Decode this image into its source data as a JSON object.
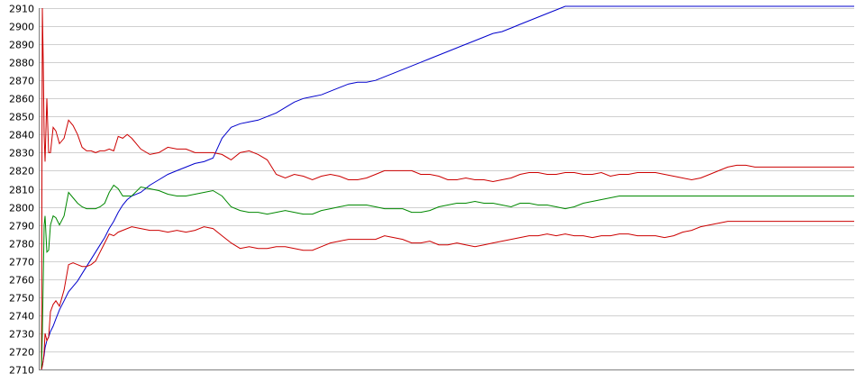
{
  "chart_data": {
    "type": "line",
    "title": "",
    "xlabel": "",
    "ylabel": "",
    "ylim": [
      2710,
      2910
    ],
    "yticks": [
      2710,
      2720,
      2730,
      2740,
      2750,
      2760,
      2770,
      2780,
      2790,
      2800,
      2810,
      2820,
      2830,
      2840,
      2850,
      2860,
      2870,
      2880,
      2890,
      2900,
      2910
    ],
    "grid": true,
    "legend": "none",
    "x": [
      0,
      1,
      2,
      3,
      4,
      6,
      8,
      10,
      13,
      16,
      20,
      25,
      30,
      35,
      40,
      45,
      50,
      55,
      60,
      65,
      70,
      75,
      80,
      85,
      90,
      95,
      100,
      110,
      120,
      130,
      140,
      150,
      160,
      170,
      180,
      190,
      200,
      210,
      220,
      230,
      240,
      250,
      260,
      270,
      280,
      290,
      300,
      310,
      320,
      330,
      340,
      350,
      360,
      370,
      380,
      390,
      400,
      410,
      420,
      430,
      440,
      450,
      460,
      470,
      480,
      490,
      500,
      510,
      520,
      530,
      540,
      550,
      560,
      570,
      580,
      590,
      600,
      610,
      620,
      630,
      640,
      650,
      660,
      670,
      680,
      690,
      700,
      710,
      720,
      730,
      740,
      750,
      760,
      770,
      780,
      790,
      800,
      810,
      820,
      830,
      840,
      850,
      860,
      870,
      880,
      890,
      900
    ],
    "series": [
      {
        "color": "#0000cc",
        "values": [
          2710,
          2712,
          2715,
          2718,
          2722,
          2726,
          2728,
          2731,
          2734,
          2738,
          2743,
          2748,
          2753,
          2756,
          2759,
          2763,
          2767,
          2771,
          2775,
          2779,
          2783,
          2788,
          2792,
          2797,
          2801,
          2804,
          2806,
          2808,
          2812,
          2815,
          2818,
          2820,
          2822,
          2824,
          2825,
          2827,
          2838,
          2844,
          2846,
          2847,
          2848,
          2850,
          2852,
          2855,
          2858,
          2860,
          2861,
          2862,
          2864,
          2866,
          2868,
          2869,
          2869,
          2870,
          2872,
          2874,
          2876,
          2878,
          2880,
          2882,
          2884,
          2886,
          2888,
          2890,
          2892,
          2894,
          2896,
          2897,
          2899,
          2901,
          2903,
          2905,
          2907,
          2909,
          2911,
          2911,
          2911,
          2911,
          2911,
          2911,
          2911,
          2911,
          2911,
          2911,
          2911,
          2911,
          2911,
          2911,
          2911,
          2911,
          2911,
          2911,
          2911,
          2911,
          2911,
          2911,
          2911,
          2911,
          2911,
          2911,
          2911,
          2911,
          2911,
          2911,
          2911,
          2911,
          2911
        ]
      },
      {
        "color": "#cc0000",
        "values": [
          2710,
          2910,
          2880,
          2840,
          2825,
          2860,
          2830,
          2830,
          2844,
          2842,
          2835,
          2838,
          2848,
          2845,
          2840,
          2833,
          2831,
          2831,
          2830,
          2831,
          2831,
          2832,
          2831,
          2839,
          2838,
          2840,
          2838,
          2832,
          2829,
          2830,
          2833,
          2832,
          2832,
          2830,
          2830,
          2830,
          2829,
          2826,
          2830,
          2831,
          2829,
          2826,
          2818,
          2816,
          2818,
          2817,
          2815,
          2817,
          2818,
          2817,
          2815,
          2815,
          2816,
          2818,
          2820,
          2820,
          2820,
          2820,
          2818,
          2818,
          2817,
          2815,
          2815,
          2816,
          2815,
          2815,
          2814,
          2815,
          2816,
          2818,
          2819,
          2819,
          2818,
          2818,
          2819,
          2819,
          2818,
          2818,
          2819,
          2817,
          2818,
          2818,
          2819,
          2819,
          2819,
          2818,
          2817,
          2816,
          2815,
          2816,
          2818,
          2820,
          2822,
          2823,
          2823,
          2822,
          2822,
          2822,
          2822,
          2822,
          2822,
          2822,
          2822,
          2822,
          2822,
          2822,
          2822
        ]
      },
      {
        "color": "#008800",
        "values": [
          2710,
          2730,
          2760,
          2790,
          2795,
          2775,
          2776,
          2790,
          2795,
          2794,
          2790,
          2795,
          2808,
          2805,
          2802,
          2800,
          2799,
          2799,
          2799,
          2800,
          2802,
          2808,
          2812,
          2810,
          2806,
          2806,
          2806,
          2811,
          2810,
          2809,
          2807,
          2806,
          2806,
          2807,
          2808,
          2809,
          2806,
          2800,
          2798,
          2797,
          2797,
          2796,
          2797,
          2798,
          2797,
          2796,
          2796,
          2798,
          2799,
          2800,
          2801,
          2801,
          2801,
          2800,
          2799,
          2799,
          2799,
          2797,
          2797,
          2798,
          2800,
          2801,
          2802,
          2802,
          2803,
          2802,
          2802,
          2801,
          2800,
          2802,
          2802,
          2801,
          2801,
          2800,
          2799,
          2800,
          2802,
          2803,
          2804,
          2805,
          2806,
          2806,
          2806,
          2806,
          2806,
          2806,
          2806,
          2806,
          2806,
          2806,
          2806,
          2806,
          2806,
          2806,
          2806,
          2806,
          2806,
          2806,
          2806,
          2806,
          2806,
          2806,
          2806,
          2806,
          2806,
          2806,
          2806
        ]
      },
      {
        "color": "#cc0000",
        "values": [
          2710,
          2712,
          2715,
          2720,
          2730,
          2726,
          2728,
          2742,
          2746,
          2748,
          2745,
          2754,
          2768,
          2769,
          2768,
          2767,
          2767,
          2768,
          2770,
          2775,
          2780,
          2785,
          2784,
          2786,
          2787,
          2788,
          2789,
          2788,
          2787,
          2787,
          2786,
          2787,
          2786,
          2787,
          2789,
          2788,
          2784,
          2780,
          2777,
          2778,
          2777,
          2777,
          2778,
          2778,
          2777,
          2776,
          2776,
          2778,
          2780,
          2781,
          2782,
          2782,
          2782,
          2782,
          2784,
          2783,
          2782,
          2780,
          2780,
          2781,
          2779,
          2779,
          2780,
          2779,
          2778,
          2779,
          2780,
          2781,
          2782,
          2783,
          2784,
          2784,
          2785,
          2784,
          2785,
          2784,
          2784,
          2783,
          2784,
          2784,
          2785,
          2785,
          2784,
          2784,
          2784,
          2783,
          2784,
          2786,
          2787,
          2789,
          2790,
          2791,
          2792,
          2792,
          2792,
          2792,
          2792,
          2792,
          2792,
          2792,
          2792,
          2792,
          2792,
          2792,
          2792,
          2792,
          2792
        ]
      }
    ]
  }
}
